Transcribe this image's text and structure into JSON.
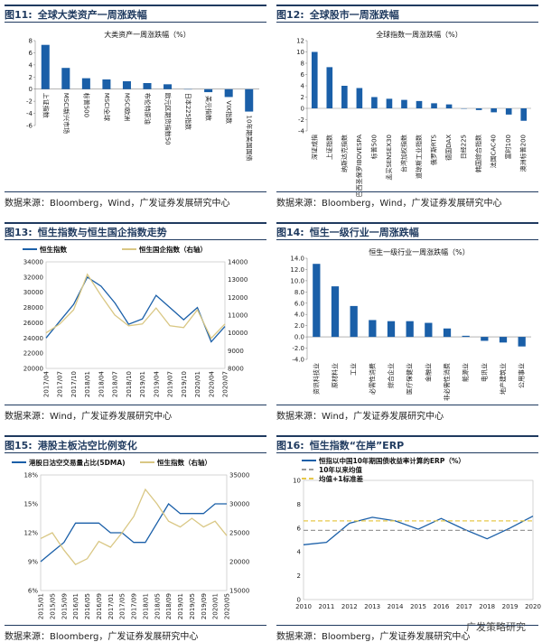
{
  "colors": {
    "navy": "#1f3a5f",
    "blue": "#1a5fa8",
    "khaki": "#d9c784",
    "grey": "#9a9a9a",
    "yellow": "#e7c94a"
  },
  "panels": [
    {
      "num": "图11:",
      "title": "全球大类资产一周涨跌幅",
      "source": "数据来源：Bloomberg，Wind，广发证券发展研究中心"
    },
    {
      "num": "图12:",
      "title": "全球股市一周涨跌幅",
      "source": "数据来源：Bloomberg，Wind，广发证券发展研究中心"
    },
    {
      "num": "图13:",
      "title": "恒生指数与恒生国企指数走势",
      "source": "数据来源：Wind，广发证券发展研究中心"
    },
    {
      "num": "图14:",
      "title": "恒生一级行业一周涨跌幅",
      "source": "数据来源：Wind，广发证券发展研究中心"
    },
    {
      "num": "图15:",
      "title": "港股主板沽空比例变化",
      "source": "数据来源：Bloomberg，广发证券发展研究中心"
    },
    {
      "num": "图16:",
      "title": "恒生指数“在岸”ERP",
      "source": "数据来源：Bloomberg，广发证券发展研究中心"
    }
  ],
  "watermark": "广发策略研究",
  "chart_data": [
    {
      "type": "bar",
      "title": "大类资产一周涨跌幅（%）",
      "categories": [
        "上证指数",
        "MSCI新兴市场",
        "标普500",
        "MSCI全球",
        "MSCI欧洲",
        "布伦特原油",
        "欧元区期货指数50",
        "日本225指数",
        "美元指数",
        "VIX指数",
        "10年期美国国债"
      ],
      "values": [
        7.3,
        3.5,
        1.8,
        1.6,
        1.3,
        1.0,
        0.8,
        0.0,
        -0.5,
        -1.3,
        -3.7
      ],
      "yticks": [
        8,
        6,
        4,
        2,
        0,
        -2,
        -4,
        -6
      ],
      "ylim": [
        -6,
        8
      ],
      "grid": false,
      "legend": "none"
    },
    {
      "type": "bar",
      "title": "全球指数一周涨跌幅（%）",
      "categories": [
        "深证成指",
        "上证指数",
        "纳斯达克指数",
        "巴西圣保罗IBOVESPA",
        "标普500",
        "孟买SENSEX30",
        "台湾加权指数",
        "道琼斯工业指数",
        "俄罗斯RTS",
        "德国DAX",
        "日经225",
        "韩国综合指数",
        "法国CAC40",
        "富时100",
        "澳洲标普200"
      ],
      "values": [
        10.0,
        7.3,
        4.0,
        3.6,
        2.0,
        1.7,
        1.5,
        1.3,
        0.9,
        0.7,
        0.0,
        -0.3,
        -0.7,
        -1.1,
        -2.2
      ],
      "yticks": [
        12,
        10,
        8,
        6,
        4,
        2,
        0,
        -2,
        -4
      ],
      "ylim": [
        -4,
        12
      ],
      "grid": false,
      "legend": "none"
    },
    {
      "type": "line",
      "x": [
        "2017/04",
        "2017/07",
        "2017/10",
        "2018/01",
        "2018/04",
        "2018/07",
        "2018/10",
        "2019/01",
        "2019/04",
        "2019/07",
        "2019/10",
        "2020/01",
        "2020/04",
        "2020/07"
      ],
      "series": [
        {
          "name": "恒生指数",
          "axis": "left",
          "values": [
            24000,
            26200,
            28400,
            32000,
            30800,
            28600,
            25800,
            26500,
            29600,
            28000,
            26400,
            28000,
            23500,
            25500
          ]
        },
        {
          "name": "恒生国企指数（右轴）",
          "axis": "right",
          "values": [
            10000,
            10500,
            11300,
            13300,
            12100,
            11000,
            10400,
            10500,
            11400,
            10400,
            10300,
            11300,
            9700,
            10500
          ]
        }
      ],
      "yticks_left": [
        34000,
        32000,
        30000,
        28000,
        26000,
        24000,
        22000,
        20000
      ],
      "ylim_left": [
        20000,
        34000
      ],
      "yticks_right": [
        14000,
        13000,
        12000,
        11000,
        10000,
        9000,
        8000
      ],
      "ylim_right": [
        8000,
        14000
      ],
      "legend": "top-left"
    },
    {
      "type": "bar",
      "title": "恒生一级行业一周涨跌幅（%）",
      "categories": [
        "资讯科技业",
        "原材料业",
        "工业",
        "必需性消费",
        "综合企业",
        "医疗保健业",
        "金融业",
        "非必需性消费",
        "能源业",
        "电讯业",
        "地产建筑业",
        "公用事业"
      ],
      "values": [
        13.0,
        9.0,
        5.5,
        3.0,
        2.8,
        2.8,
        2.5,
        1.5,
        0.2,
        -0.7,
        -1.0,
        -1.7
      ],
      "yticks": [
        14.0,
        12.0,
        10.0,
        8.0,
        6.0,
        4.0,
        2.0,
        0.0,
        -2.0,
        -4.0
      ],
      "ylim": [
        -4,
        14
      ],
      "grid": false,
      "legend": "none"
    },
    {
      "type": "line",
      "x": [
        "2015/01",
        "2015/05",
        "2015/09",
        "2016/01",
        "2016/05",
        "2016/09",
        "2017/01",
        "2017/05",
        "2017/09",
        "2018/01",
        "2018/05",
        "2018/09",
        "2019/01",
        "2019/05",
        "2019/09",
        "2020/01",
        "2020/05"
      ],
      "series": [
        {
          "name": "港股日沽空交易量占比(5DMA)",
          "axis": "left",
          "values": [
            9,
            10,
            11,
            13,
            13,
            13,
            12,
            12,
            11,
            11,
            13,
            15,
            14,
            14,
            14,
            15,
            15
          ]
        },
        {
          "name": "恒生指数（右轴）",
          "axis": "right",
          "values": [
            24000,
            25000,
            22000,
            19500,
            20500,
            23500,
            22500,
            25000,
            27800,
            32500,
            30000,
            27000,
            26000,
            27500,
            26000,
            27000,
            24500
          ]
        }
      ],
      "yticks_left": [
        "18%",
        "15%",
        "12%",
        "9%",
        "6%"
      ],
      "ylim_left": [
        6,
        18
      ],
      "yticks_right": [
        35000,
        30000,
        25000,
        20000,
        15000
      ],
      "ylim_right": [
        15000,
        35000
      ],
      "legend": "top"
    },
    {
      "type": "line",
      "x": [
        "2010",
        "2011",
        "2012",
        "2013",
        "2014",
        "2015",
        "2016",
        "2017",
        "2018",
        "2019",
        "2020"
      ],
      "series": [
        {
          "name": "恒指以中国10年期国债收益率计算的ERP（%）",
          "values": [
            4.6,
            4.8,
            6.4,
            6.9,
            6.6,
            5.9,
            6.8,
            5.9,
            5.1,
            6.0,
            7.0
          ]
        },
        {
          "name": "10年以来均值",
          "values": [
            5.8,
            5.8,
            5.8,
            5.8,
            5.8,
            5.8,
            5.8,
            5.8,
            5.8,
            5.8,
            5.8
          ]
        },
        {
          "name": "均值+1标准差",
          "values": [
            6.6,
            6.6,
            6.6,
            6.6,
            6.6,
            6.6,
            6.6,
            6.6,
            6.6,
            6.6,
            6.6
          ]
        }
      ],
      "yticks": [
        10,
        8,
        6,
        4,
        2,
        0
      ],
      "ylim": [
        0,
        10
      ],
      "legend": "top-left"
    }
  ]
}
